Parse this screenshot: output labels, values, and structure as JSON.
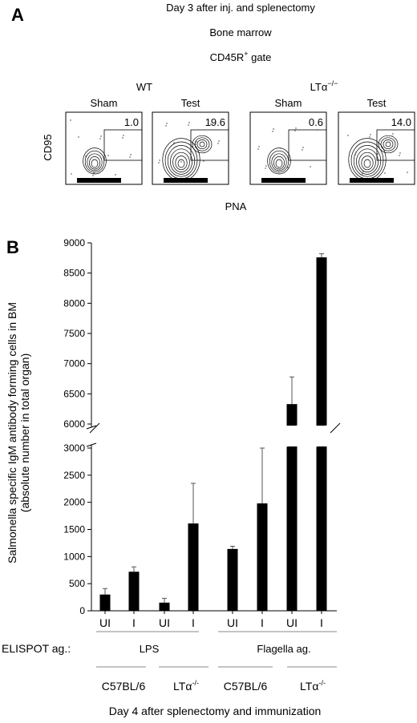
{
  "panel_a": {
    "letter": "A",
    "title_lines": [
      "Day 3 after inj. and splenectomy",
      "Bone marrow",
      "CD45R+ gate"
    ],
    "groups": [
      {
        "name": "WT",
        "plots": [
          {
            "label": "Sham",
            "value": "1.0"
          },
          {
            "label": "Test",
            "value": "19.6"
          }
        ]
      },
      {
        "name": "LTα−/−",
        "plots": [
          {
            "label": "Sham",
            "value": "0.6"
          },
          {
            "label": "Test",
            "value": "14.0"
          }
        ]
      }
    ],
    "y_axis_label": "CD95",
    "x_axis_label": "PNA"
  },
  "panel_b": {
    "letter": "B",
    "ylabel_line1": "Salmonella specific IgM antibody forming cells in BM",
    "ylabel_line2": "(absolute number in total organ)",
    "elispot_label": "ELISPOT ag.:",
    "antigens": [
      "LPS",
      "Flagella ag."
    ],
    "strains": [
      "C57BL/6",
      "LTα-/-",
      "C57BL/6",
      "LTα-/-"
    ],
    "footer": "Day 4 after splenectomy and immunization"
  },
  "chart_data": {
    "type": "bar",
    "categories": [
      "UI",
      "I",
      "UI",
      "I",
      "UI",
      "I",
      "UI",
      "I"
    ],
    "values": [
      300,
      720,
      150,
      1610,
      1140,
      1980,
      6330,
      8760
    ],
    "errors": [
      110,
      90,
      80,
      740,
      50,
      1260,
      450,
      60
    ],
    "ylim_lower": [
      0,
      3000
    ],
    "ylim_upper": [
      6000,
      9000
    ],
    "yticks_lower": [
      0,
      500,
      1000,
      1500,
      2000,
      2500,
      3000
    ],
    "yticks_upper": [
      6000,
      6500,
      7000,
      7500,
      8000,
      8500,
      9000
    ],
    "axis_break": true,
    "bar_color": "#000000"
  }
}
